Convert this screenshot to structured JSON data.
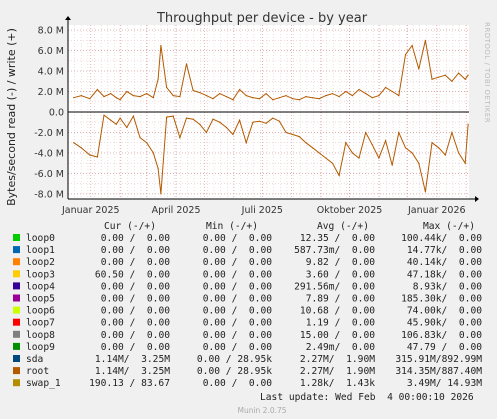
{
  "watermark": "RRDTOOL / TOBI OETIKER",
  "footer": "Munin 2.0.75",
  "last_update": "Last update: Wed Feb  4 00:00:10 2026",
  "legend_header": {
    "cur": "Cur (-/+)",
    "min": "Min (-/+)",
    "avg": "Avg (-/+)",
    "max": "Max (-/+)"
  },
  "legend": [
    {
      "name": "loop0",
      "color": "#00cc00",
      "cur": "0.00 /  0.00",
      "min": "0.00 /  0.00",
      "avg": "12.35 /  0.00",
      "max": "100.44k/  0.00"
    },
    {
      "name": "loop1",
      "color": "#0066b3",
      "cur": "0.00 /  0.00",
      "min": "0.00 /  0.00",
      "avg": "587.73m/  0.00",
      "max": "14.77k/  0.00"
    },
    {
      "name": "loop2",
      "color": "#ff8000",
      "cur": "0.00 /  0.00",
      "min": "0.00 /  0.00",
      "avg": "9.82 /  0.00",
      "max": "40.14k/  0.00"
    },
    {
      "name": "loop3",
      "color": "#ffcc00",
      "cur": "60.50 /  0.00",
      "min": "0.00 /  0.00",
      "avg": "3.60 /  0.00",
      "max": "47.18k/  0.00"
    },
    {
      "name": "loop4",
      "color": "#330099",
      "cur": "0.00 /  0.00",
      "min": "0.00 /  0.00",
      "avg": "291.56m/  0.00",
      "max": "8.93k/  0.00"
    },
    {
      "name": "loop5",
      "color": "#990099",
      "cur": "0.00 /  0.00",
      "min": "0.00 /  0.00",
      "avg": "7.89 /  0.00",
      "max": "185.30k/  0.00"
    },
    {
      "name": "loop6",
      "color": "#ccff00",
      "cur": "0.00 /  0.00",
      "min": "0.00 /  0.00",
      "avg": "10.68 /  0.00",
      "max": "74.00k/  0.00"
    },
    {
      "name": "loop7",
      "color": "#ff0000",
      "cur": "0.00 /  0.00",
      "min": "0.00 /  0.00",
      "avg": "1.19 /  0.00",
      "max": "45.90k/  0.00"
    },
    {
      "name": "loop8",
      "color": "#808080",
      "cur": "0.00 /  0.00",
      "min": "0.00 /  0.00",
      "avg": "15.00 /  0.00",
      "max": "106.83k/  0.00"
    },
    {
      "name": "loop9",
      "color": "#008f00",
      "cur": "0.00 /  0.00",
      "min": "0.00 /  0.00",
      "avg": "2.49m/  0.00",
      "max": "47.79 /  0.00"
    },
    {
      "name": "sda",
      "color": "#00487d",
      "cur": "1.14M/  3.25M",
      "min": "0.00 / 28.95k",
      "avg": "2.27M/  1.90M",
      "max": "315.91M/892.99M"
    },
    {
      "name": "root",
      "color": "#b35a00",
      "cur": "1.14M/  3.25M",
      "min": "0.00 / 28.95k",
      "avg": "2.27M/  1.90M",
      "max": "314.35M/887.40M"
    },
    {
      "name": "swap_1",
      "color": "#b38f00",
      "cur": "190.13 / 83.67",
      "min": "0.00 /  0.00",
      "avg": "1.28k/  1.43k",
      "max": "3.49M/ 14.93M"
    }
  ],
  "chart_data": {
    "type": "line",
    "title": "Throughput per device - by year",
    "ylabel": "Bytes/second read (-) / write (+)",
    "ylim": [
      -8500000,
      8500000
    ],
    "yticks": [
      -8000000,
      -6000000,
      -4000000,
      -2000000,
      0,
      2000000,
      4000000,
      6000000,
      8000000
    ],
    "ytick_labels": [
      "-8.0 M",
      "-6.0 M",
      "-4.0 M",
      "-2.0 M",
      "0.0",
      "2.0 M",
      "4.0 M",
      "6.0 M",
      "8.0 M"
    ],
    "xlim": [
      "2024-12-08",
      "2026-02-04"
    ],
    "xticks": [
      "2025-01-01",
      "2025-04-01",
      "2025-07-01",
      "2025-10-01",
      "2026-01-01"
    ],
    "xtick_labels": [
      "Januar 2025",
      "April 2025",
      "Juli 2025",
      "Oktober 2025",
      "Januar 2026"
    ],
    "grid": true,
    "series": [
      {
        "color": "#b35a00",
        "x": [
          "2024-12-14",
          "2024-12-22",
          "2024-12-31",
          "2025-01-08",
          "2025-01-15",
          "2025-01-22",
          "2025-01-28",
          "2025-02-01",
          "2025-02-08",
          "2025-02-15",
          "2025-02-22",
          "2025-03-01",
          "2025-03-08",
          "2025-03-13",
          "2025-03-16",
          "2025-03-22",
          "2025-03-29",
          "2025-04-05",
          "2025-04-12",
          "2025-04-19",
          "2025-04-26",
          "2025-05-03",
          "2025-05-10",
          "2025-05-17",
          "2025-05-24",
          "2025-05-31",
          "2025-06-07",
          "2025-06-14",
          "2025-06-21",
          "2025-06-28",
          "2025-07-05",
          "2025-07-12",
          "2025-07-19",
          "2025-07-26",
          "2025-08-02",
          "2025-08-09",
          "2025-08-16",
          "2025-08-23",
          "2025-08-30",
          "2025-09-06",
          "2025-09-13",
          "2025-09-20",
          "2025-09-27",
          "2025-10-04",
          "2025-10-11",
          "2025-10-18",
          "2025-10-25",
          "2025-11-01",
          "2025-11-08",
          "2025-11-15",
          "2025-11-22",
          "2025-11-29",
          "2025-12-06",
          "2025-12-13",
          "2025-12-20",
          "2025-12-27",
          "2026-01-03",
          "2026-01-10",
          "2026-01-17",
          "2026-01-24",
          "2026-01-31",
          "2026-02-03"
        ],
        "read": [
          -3.0,
          -3.5,
          -4.2,
          -4.4,
          -0.3,
          -0.8,
          -1.2,
          -0.6,
          -1.5,
          -0.4,
          -2.5,
          -3.0,
          -4.0,
          -5.5,
          -8.0,
          -0.5,
          -0.4,
          -2.5,
          -0.6,
          -0.7,
          -1.2,
          -2.0,
          -0.7,
          -1.0,
          -1.5,
          -2.2,
          -0.8,
          -3.0,
          -1.0,
          -0.9,
          -1.1,
          -0.6,
          -0.9,
          -2.0,
          -2.2,
          -2.4,
          -3.0,
          -3.5,
          -4.0,
          -4.5,
          -5.0,
          -6.2,
          -3.0,
          -4.0,
          -4.5,
          -2.0,
          -3.2,
          -4.5,
          -2.8,
          -5.2,
          -2.0,
          -3.5,
          -4.0,
          -5.0,
          -7.8,
          -3.0,
          -3.5,
          -4.2,
          -2.0,
          -4.0,
          -5.0,
          -1.2
        ],
        "write": [
          1.4,
          1.6,
          1.3,
          2.2,
          1.5,
          1.8,
          1.4,
          1.2,
          2.0,
          1.6,
          1.5,
          1.8,
          1.4,
          3.2,
          6.5,
          2.4,
          1.6,
          1.5,
          4.7,
          2.1,
          1.9,
          1.6,
          1.3,
          1.8,
          1.5,
          1.2,
          2.2,
          1.6,
          1.4,
          1.3,
          1.8,
          1.2,
          1.4,
          1.6,
          1.3,
          1.2,
          1.5,
          1.4,
          1.3,
          1.6,
          1.8,
          1.5,
          2.0,
          1.6,
          2.2,
          1.8,
          1.4,
          1.6,
          2.4,
          2.0,
          1.6,
          5.6,
          6.5,
          4.2,
          7.0,
          3.2,
          3.4,
          3.6,
          3.0,
          3.8,
          3.2,
          3.6
        ]
      }
    ]
  }
}
